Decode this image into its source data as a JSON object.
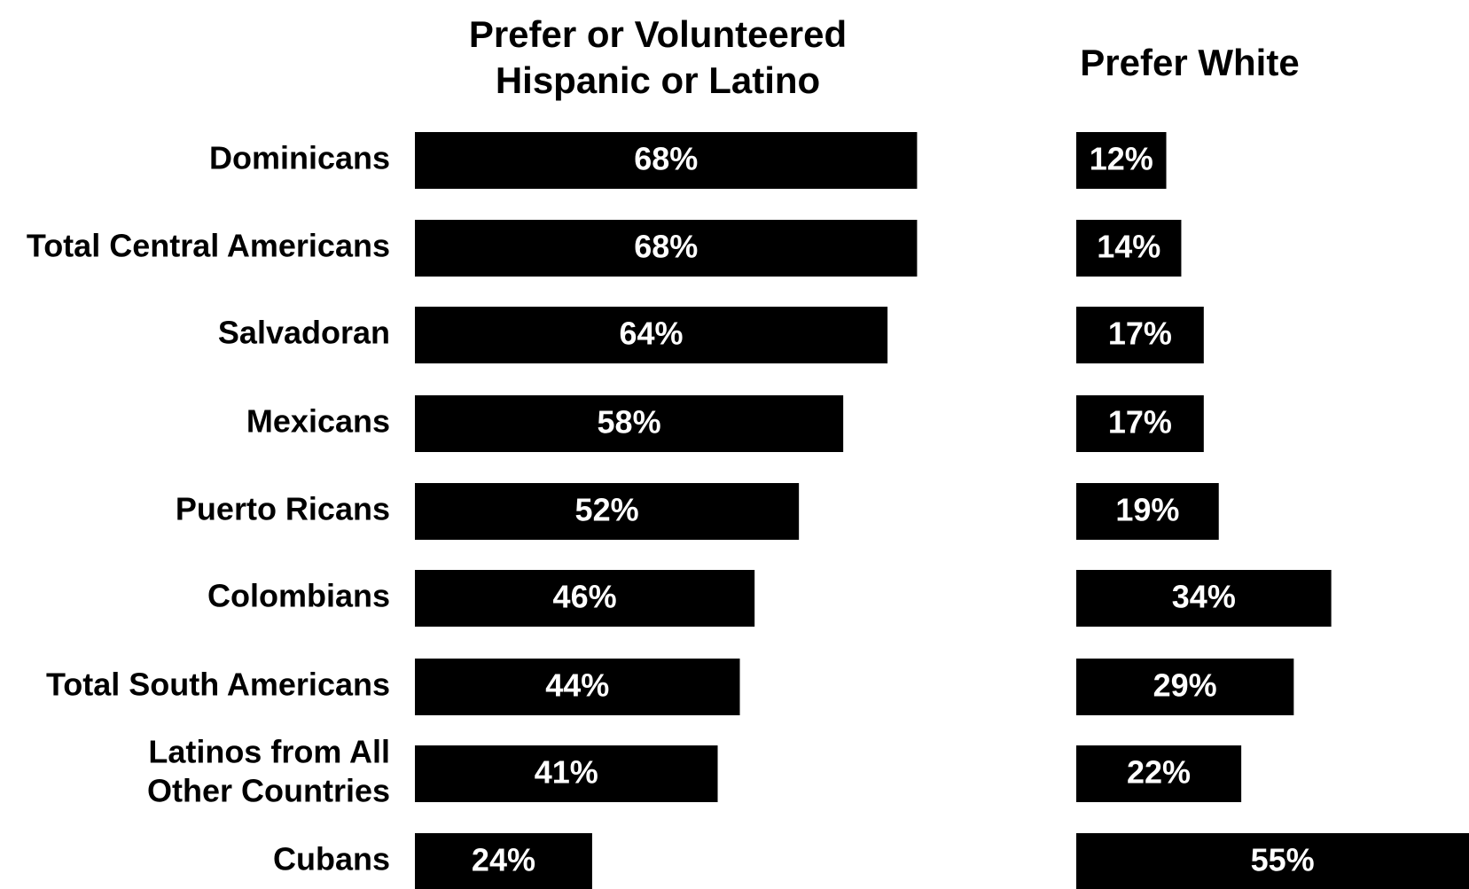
{
  "chart_data": {
    "type": "bar",
    "orientation": "horizontal",
    "categories": [
      [
        "Dominicans"
      ],
      [
        "Total Central Americans"
      ],
      [
        "Salvadoran"
      ],
      [
        "Mexicans"
      ],
      [
        "Puerto Ricans"
      ],
      [
        "Colombians"
      ],
      [
        "Total South Americans"
      ],
      [
        "Latinos from All",
        "Other Countries"
      ],
      [
        "Cubans"
      ]
    ],
    "series": [
      {
        "name": "Prefer or Volunteered Hispanic or Latino",
        "title_lines": [
          "Prefer or Volunteered",
          "Hispanic or Latino"
        ],
        "values": [
          68,
          68,
          64,
          58,
          52,
          46,
          44,
          41,
          24
        ],
        "labels": [
          "68%",
          "68%",
          "64%",
          "58%",
          "52%",
          "46%",
          "44%",
          "41%",
          "24%"
        ]
      },
      {
        "name": "Prefer White",
        "title_lines": [
          "Prefer White"
        ],
        "values": [
          12,
          14,
          17,
          17,
          19,
          34,
          29,
          22,
          55
        ],
        "labels": [
          "12%",
          "14%",
          "17%",
          "17%",
          "19%",
          "34%",
          "29%",
          "22%",
          "55%"
        ]
      }
    ],
    "colors": {
      "bar": "#000000",
      "bar_label": "#ffffff",
      "text": "#000000",
      "background": "#ffffff"
    },
    "grid": false,
    "legend": "none"
  }
}
